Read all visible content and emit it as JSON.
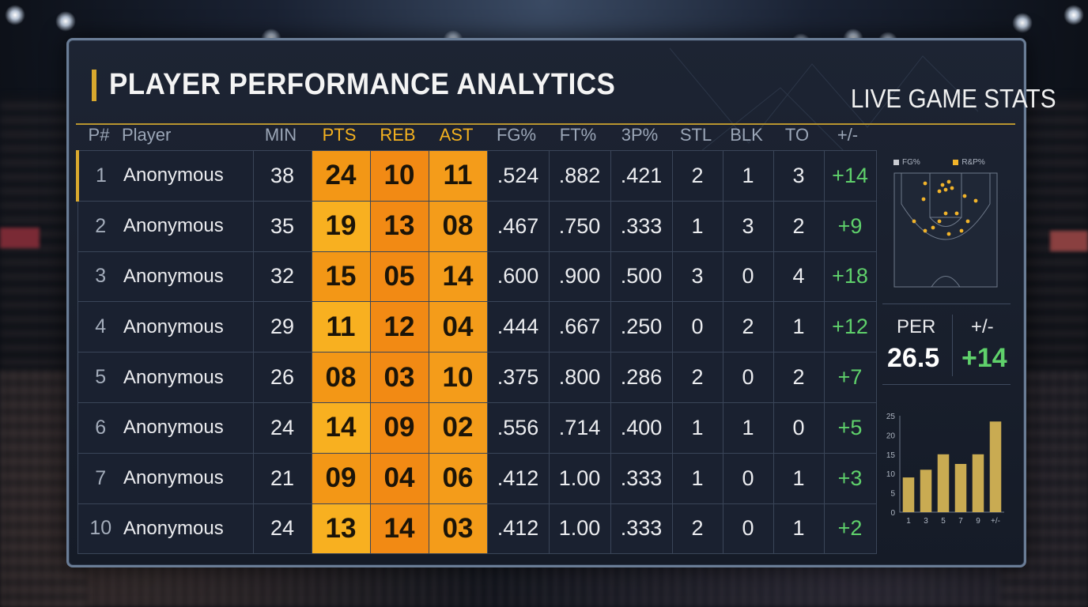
{
  "header": {
    "title": "PLAYER PERFORMANCE ANALYTICS",
    "subtitle": "LIVE GAME STATS"
  },
  "columns": [
    "P#",
    "Player",
    "MIN",
    "PTS",
    "REB",
    "AST",
    "FG%",
    "FT%",
    "3P%",
    "STL",
    "BLK",
    "TO",
    "+/-"
  ],
  "highlight_columns": [
    "PTS",
    "REB",
    "AST"
  ],
  "rows": [
    {
      "pn": "1",
      "name": "Anonymous",
      "min": "38",
      "pts": "24",
      "reb": "10",
      "ast": "11",
      "fg": ".524",
      "ft": ".882",
      "tp": ".421",
      "stl": "2",
      "blk": "1",
      "to": "3",
      "pm": "+14"
    },
    {
      "pn": "2",
      "name": "Anonymous",
      "min": "35",
      "pts": "19",
      "reb": "13",
      "ast": "08",
      "fg": ".467",
      "ft": ".750",
      "tp": ".333",
      "stl": "1",
      "blk": "3",
      "to": "2",
      "pm": "+9"
    },
    {
      "pn": "3",
      "name": "Anonymous",
      "min": "32",
      "pts": "15",
      "reb": "05",
      "ast": "14",
      "fg": ".600",
      "ft": ".900",
      "tp": ".500",
      "stl": "3",
      "blk": "0",
      "to": "4",
      "pm": "+18"
    },
    {
      "pn": "4",
      "name": "Anonymous",
      "min": "29",
      "pts": "11",
      "reb": "12",
      "ast": "04",
      "fg": ".444",
      "ft": ".667",
      "tp": ".250",
      "stl": "0",
      "blk": "2",
      "to": "1",
      "pm": "+12"
    },
    {
      "pn": "5",
      "name": "Anonymous",
      "min": "26",
      "pts": "08",
      "reb": "03",
      "ast": "10",
      "fg": ".375",
      "ft": ".800",
      "tp": ".286",
      "stl": "2",
      "blk": "0",
      "to": "2",
      "pm": "+7"
    },
    {
      "pn": "6",
      "name": "Anonymous",
      "min": "24",
      "pts": "14",
      "reb": "09",
      "ast": "02",
      "fg": ".556",
      "ft": ".714",
      "tp": ".400",
      "stl": "1",
      "blk": "1",
      "to": "0",
      "pm": "+5"
    },
    {
      "pn": "7",
      "name": "Anonymous",
      "min": "21",
      "pts": "09",
      "reb": "04",
      "ast": "06",
      "fg": ".412",
      "ft": "1.00",
      "tp": ".333",
      "stl": "1",
      "blk": "0",
      "to": "1",
      "pm": "+3"
    },
    {
      "pn": "10",
      "name": "Anonymous",
      "min": "24",
      "pts": "13",
      "reb": "14",
      "ast": "03",
      "fg": ".412",
      "ft": "1.00",
      "tp": ".333",
      "stl": "2",
      "blk": "0",
      "to": "1",
      "pm": "+2"
    }
  ],
  "side_panel": {
    "legend": [
      {
        "label": "FG%",
        "color": "#c9ccd2"
      },
      {
        "label": "R&P%",
        "color": "#f2b42a"
      }
    ],
    "shot_chart_icon": "basketball-court-icon",
    "per_label": "PER",
    "per_value": "26.5",
    "pm_label": "+/-",
    "pm_value": "+14"
  },
  "chart_data": {
    "type": "bar",
    "categories": [
      "1",
      "3",
      "5",
      "7",
      "9",
      "+/-"
    ],
    "values": [
      9,
      11,
      15,
      12.5,
      15,
      23.5
    ],
    "yticks": [
      "0",
      "5",
      "10",
      "15",
      "20",
      "25"
    ],
    "ylim": [
      0,
      25
    ]
  },
  "colors": {
    "accent": "#f5a81d",
    "positive": "#5fd16b",
    "gold_line": "#b8952f"
  }
}
